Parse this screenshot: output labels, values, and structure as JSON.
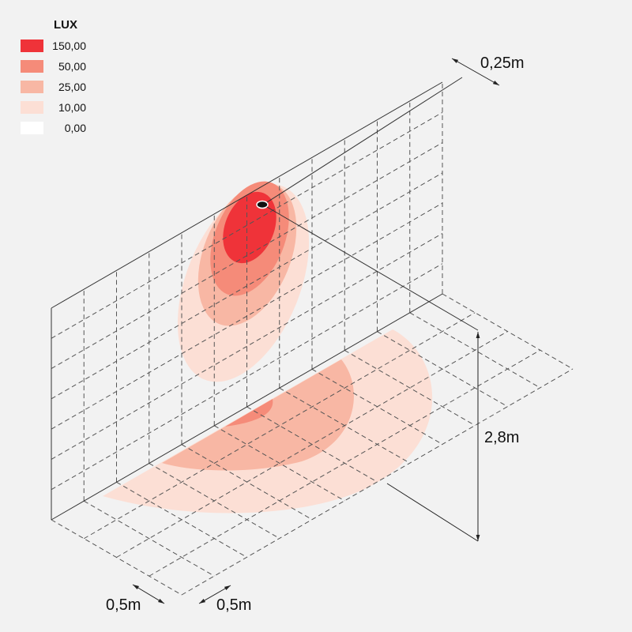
{
  "legend": {
    "title": "LUX",
    "items": [
      {
        "label": "150,00",
        "color": "#ef3339"
      },
      {
        "label": "50,00",
        "color": "#f58b79"
      },
      {
        "label": "25,00",
        "color": "#f8b7a4"
      },
      {
        "label": "10,00",
        "color": "#fcdfd5"
      },
      {
        "label": "0,00",
        "color": "#ffffff"
      }
    ]
  },
  "dimensions": {
    "offset": "0,25m",
    "height": "2,8m",
    "grid_depth": "0,5m",
    "grid_width": "0,5m"
  }
}
